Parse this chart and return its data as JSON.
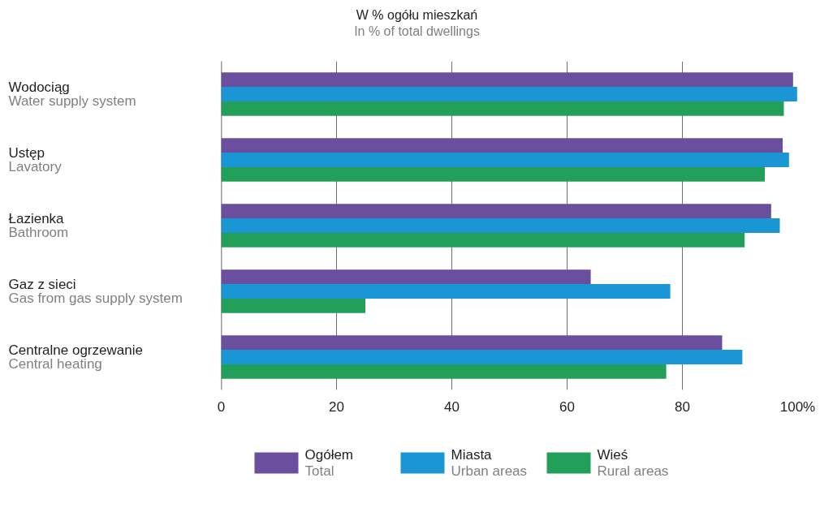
{
  "chart_data": {
    "type": "bar",
    "orientation": "horizontal",
    "title": "W % ogółu mieszkań",
    "subtitle": "In % of total dwellings",
    "categories": [
      "Wodociąg\nWater supply system",
      "Ustęp\nLavatory",
      "Łazienka\nBathroom",
      "Gaz z sieci\nGas from gas supply system",
      "Centralne ogrzewanie\nCentral heating"
    ],
    "series": [
      {
        "name": "Ogółem\nTotal",
        "color": "#6a4f9f",
        "values": [
          99.2,
          97.4,
          95.4,
          64.1,
          86.9
        ]
      },
      {
        "name": "Miasta\nUrban areas",
        "color": "#1a96d4",
        "values": [
          99.9,
          98.5,
          96.9,
          77.9,
          90.4
        ]
      },
      {
        "name": "Wieś\nRural areas",
        "color": "#22a05a",
        "values": [
          97.6,
          94.3,
          90.8,
          25.0,
          77.2
        ]
      }
    ],
    "xlim": [
      0,
      100
    ],
    "xticks": [
      0,
      20,
      40,
      60,
      80,
      {
        "value": 100,
        "label": "100%"
      }
    ],
    "grid": "x",
    "legend": "bottom"
  }
}
